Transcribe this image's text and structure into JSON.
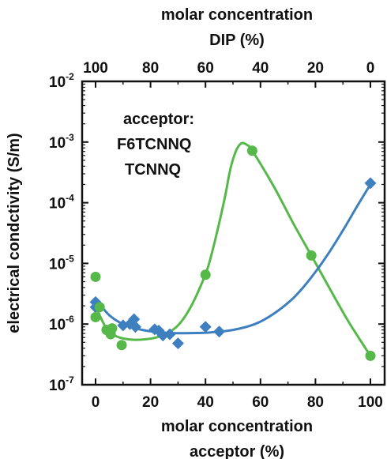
{
  "chart_data": {
    "type": "scatter",
    "y_scale": "log",
    "ylim": [
      1e-07,
      0.01
    ],
    "xlim": [
      -5,
      100
    ],
    "top_axis": {
      "title_line1": "molar concentration",
      "title_line2": "DIP (%)",
      "tick_labels": [
        "100",
        "80",
        "60",
        "40",
        "20",
        "0"
      ],
      "tick_positions": [
        0,
        20,
        40,
        60,
        80,
        100
      ]
    },
    "bottom_axis": {
      "title_line1": "molar concentration",
      "title_line2": "acceptor (%)",
      "tick_labels": [
        "0",
        "20",
        "40",
        "60",
        "80",
        "100"
      ],
      "tick_positions": [
        0,
        20,
        40,
        60,
        80,
        100
      ]
    },
    "y_axis": {
      "title": "electrical condctivity (S/m)",
      "tick_base": "10",
      "tick_exponents": [
        "-7",
        "-6",
        "-5",
        "-4",
        "-3",
        "-2"
      ],
      "tick_values": [
        1e-07,
        1e-06,
        1e-05,
        0.0001,
        0.001,
        0.01
      ]
    },
    "legend": {
      "heading": "acceptor:",
      "placement": "top-left"
    },
    "series": [
      {
        "name": "F6TCNNQ",
        "color": "#55b849",
        "marker": "circle",
        "points": [
          [
            0,
            6e-06
          ],
          [
            0,
            1.3e-06
          ],
          [
            1.5,
            1.9e-06
          ],
          [
            4,
            8e-07
          ],
          [
            5.5,
            6.8e-07
          ],
          [
            6,
            8.5e-07
          ],
          [
            9.5,
            4.5e-07
          ],
          [
            40,
            6.5e-06
          ],
          [
            57,
            0.00072
          ],
          [
            78.5,
            1.35e-05
          ],
          [
            100,
            3e-07
          ]
        ],
        "fit": [
          [
            0,
            2.1e-06
          ],
          [
            1.5,
            1.4e-06
          ],
          [
            4,
            8.5e-07
          ],
          [
            7,
            6.5e-07
          ],
          [
            10,
            5.8e-07
          ],
          [
            14,
            5.5e-07
          ],
          [
            18,
            5.6e-07
          ],
          [
            22,
            6e-07
          ],
          [
            26,
            7e-07
          ],
          [
            30,
            9.5e-07
          ],
          [
            34,
            1.7e-06
          ],
          [
            38,
            4e-06
          ],
          [
            41,
            9e-06
          ],
          [
            44,
            3e-05
          ],
          [
            47,
            0.00012
          ],
          [
            49,
            0.00035
          ],
          [
            51,
            0.0007
          ],
          [
            53,
            0.00095
          ],
          [
            55,
            0.0009
          ],
          [
            57,
            0.00072
          ],
          [
            65,
            0.00018
          ],
          [
            72,
            4.5e-05
          ],
          [
            78.5,
            1.35e-05
          ],
          [
            85,
            4e-06
          ],
          [
            92,
            1.1e-06
          ],
          [
            100,
            3e-07
          ]
        ]
      },
      {
        "name": "TCNNQ",
        "color": "#3d7fbf",
        "marker": "diamond",
        "points": [
          [
            0,
            2.3e-06
          ],
          [
            0,
            1.9e-06
          ],
          [
            10,
            9.5e-07
          ],
          [
            12.5,
            1e-06
          ],
          [
            14,
            1.2e-06
          ],
          [
            14.5,
            9e-07
          ],
          [
            21.5,
            8.2e-07
          ],
          [
            23,
            7.8e-07
          ],
          [
            24.5,
            6.5e-07
          ],
          [
            27,
            6.8e-07
          ],
          [
            30,
            4.8e-07
          ],
          [
            40,
            9e-07
          ],
          [
            45,
            7.5e-07
          ],
          [
            100,
            0.00021
          ]
        ],
        "fit": [
          [
            0,
            2.6e-06
          ],
          [
            2,
            2e-06
          ],
          [
            5,
            1.4e-06
          ],
          [
            9,
            1.05e-06
          ],
          [
            13,
            9e-07
          ],
          [
            17,
            8e-07
          ],
          [
            22,
            7.4e-07
          ],
          [
            28,
            7.1e-07
          ],
          [
            35,
            7.1e-07
          ],
          [
            42,
            7.3e-07
          ],
          [
            50,
            8e-07
          ],
          [
            58,
            1e-06
          ],
          [
            65,
            1.5e-06
          ],
          [
            72,
            2.7e-06
          ],
          [
            78,
            5.5e-06
          ],
          [
            84,
            1.3e-05
          ],
          [
            90,
            3.5e-05
          ],
          [
            95,
            8.5e-05
          ],
          [
            100,
            0.0002
          ]
        ]
      }
    ]
  }
}
